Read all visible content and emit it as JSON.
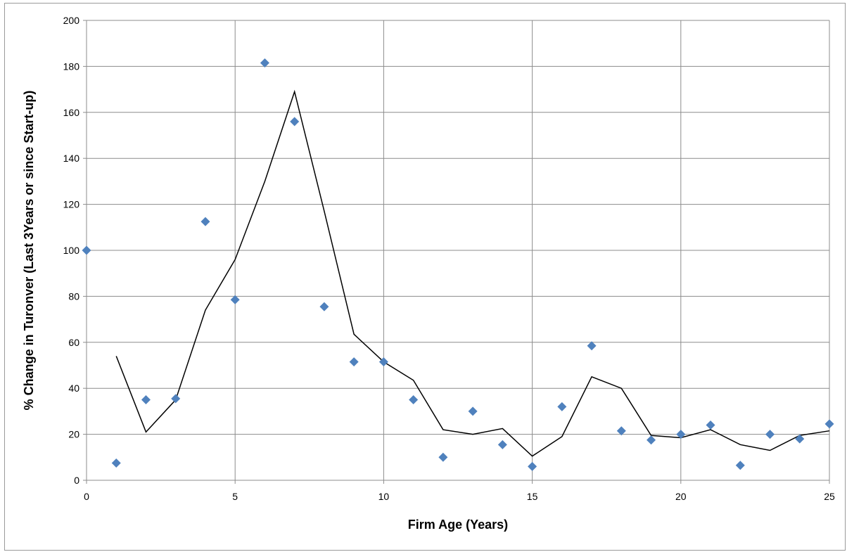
{
  "chart_data": {
    "type": "scatter",
    "title": "",
    "xlabel": "Firm Age (Years)",
    "ylabel": "% Change in Turonver (Last 3Years or since Start-up)",
    "xlim": [
      0,
      25
    ],
    "ylim": [
      0,
      200
    ],
    "x_ticks": [
      "0",
      "5",
      "10",
      "15",
      "20",
      "25"
    ],
    "y_ticks": [
      "0",
      "20",
      "40",
      "60",
      "80",
      "100",
      "120",
      "140",
      "160",
      "180",
      "200"
    ],
    "grid": true,
    "legend": "none",
    "colors": {
      "marker": "#4f81bd",
      "trendline": "#000000",
      "grid": "#8c8c8c"
    },
    "series": [
      {
        "type": "scatter",
        "marker": "diamond",
        "x": [
          0,
          1,
          2,
          3,
          4,
          5,
          6,
          7,
          8,
          9,
          10,
          11,
          12,
          13,
          14,
          15,
          16,
          17,
          18,
          19,
          20,
          21,
          22,
          23,
          24,
          25
        ],
        "y": [
          100,
          7.5,
          35,
          35.5,
          112.5,
          78.5,
          181.5,
          156,
          75.5,
          51.5,
          51.5,
          35,
          10,
          30,
          15.5,
          6,
          32,
          58.5,
          21.5,
          17.5,
          20,
          24,
          6.5,
          20,
          18,
          24.5
        ]
      },
      {
        "type": "line",
        "x": [
          1,
          2,
          3,
          4,
          5,
          6,
          7,
          8,
          9,
          10,
          11,
          12,
          13,
          14,
          15,
          16,
          17,
          18,
          19,
          20,
          21,
          22,
          23,
          24,
          25
        ],
        "y": [
          54,
          21,
          35,
          74,
          96,
          130,
          169,
          117,
          63.5,
          51.5,
          43.5,
          22,
          20,
          22.5,
          10.5,
          19,
          45,
          40,
          19.5,
          18.5,
          22,
          15.5,
          13,
          19.5,
          21.5
        ]
      }
    ]
  }
}
